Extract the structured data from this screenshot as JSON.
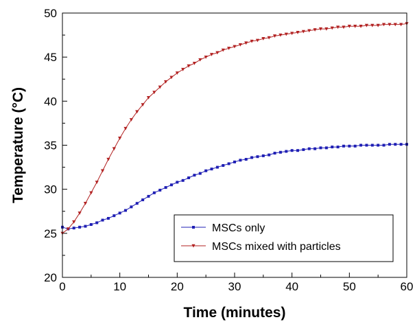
{
  "chart_data": {
    "type": "line",
    "xlabel": "Time (minutes)",
    "ylabel": "Temperature (°C)",
    "xlim": [
      0,
      60
    ],
    "ylim": [
      20,
      50
    ],
    "xticks": [
      0,
      10,
      20,
      30,
      40,
      50,
      60
    ],
    "yticks": [
      20,
      25,
      30,
      35,
      40,
      45,
      50
    ],
    "grid": false,
    "legend_position": "bottom-right",
    "x": [
      0,
      1,
      2,
      3,
      4,
      5,
      6,
      7,
      8,
      9,
      10,
      11,
      12,
      13,
      14,
      15,
      16,
      17,
      18,
      19,
      20,
      21,
      22,
      23,
      24,
      25,
      26,
      27,
      28,
      29,
      30,
      31,
      32,
      33,
      34,
      35,
      36,
      37,
      38,
      39,
      40,
      41,
      42,
      43,
      44,
      45,
      46,
      47,
      48,
      49,
      50,
      51,
      52,
      53,
      54,
      55,
      56,
      57,
      58,
      59,
      60
    ],
    "series": [
      {
        "name": "MSCs only",
        "color": "#1f1fb4",
        "marker": "square",
        "values": [
          25.7,
          25.5,
          25.6,
          25.7,
          25.8,
          26.0,
          26.2,
          26.5,
          26.7,
          27.0,
          27.3,
          27.6,
          28.0,
          28.4,
          28.8,
          29.2,
          29.6,
          29.9,
          30.2,
          30.5,
          30.8,
          31.0,
          31.3,
          31.6,
          31.8,
          32.1,
          32.3,
          32.5,
          32.7,
          32.9,
          33.1,
          33.3,
          33.4,
          33.6,
          33.7,
          33.8,
          33.9,
          34.1,
          34.2,
          34.3,
          34.4,
          34.4,
          34.5,
          34.6,
          34.6,
          34.7,
          34.7,
          34.8,
          34.8,
          34.9,
          34.9,
          34.9,
          35.0,
          35.0,
          35.0,
          35.0,
          35.0,
          35.1,
          35.1,
          35.1,
          35.1
        ]
      },
      {
        "name": "MSCs mixed with particles",
        "color": "#b22222",
        "marker": "triangle-down",
        "values": [
          25.0,
          25.5,
          26.3,
          27.3,
          28.4,
          29.6,
          30.8,
          32.1,
          33.4,
          34.6,
          35.8,
          36.9,
          37.9,
          38.8,
          39.6,
          40.4,
          41.0,
          41.6,
          42.2,
          42.7,
          43.2,
          43.6,
          44.0,
          44.3,
          44.7,
          45.0,
          45.3,
          45.5,
          45.8,
          46.0,
          46.2,
          46.4,
          46.6,
          46.8,
          46.9,
          47.1,
          47.2,
          47.4,
          47.5,
          47.6,
          47.7,
          47.8,
          47.9,
          48.0,
          48.1,
          48.2,
          48.2,
          48.3,
          48.4,
          48.4,
          48.5,
          48.5,
          48.5,
          48.6,
          48.6,
          48.6,
          48.7,
          48.7,
          48.7,
          48.7,
          48.8
        ]
      }
    ]
  }
}
